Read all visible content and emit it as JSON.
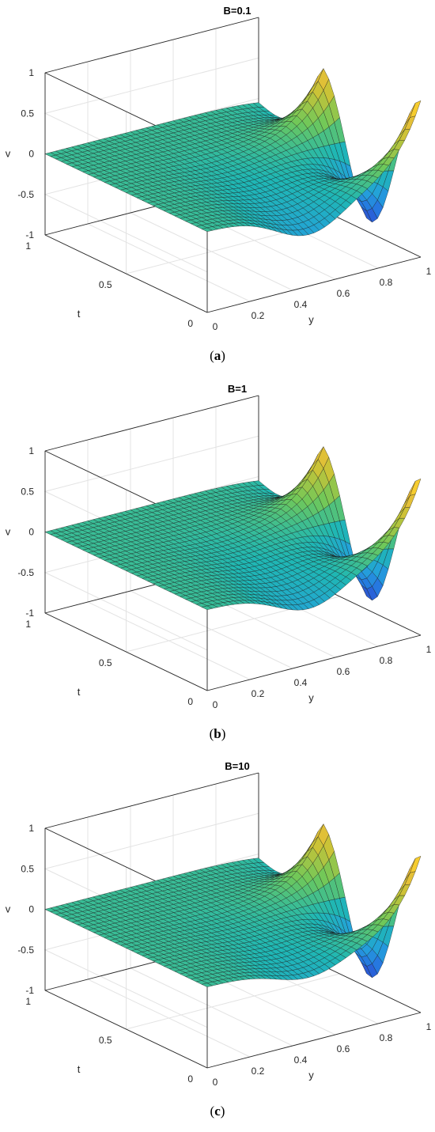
{
  "chart_data": [
    {
      "type": "surface",
      "title": "B=0.1",
      "caption": "a",
      "xlabel": "y",
      "ylabel": "t",
      "zlabel": "v",
      "xlim": [
        0,
        1
      ],
      "ylim": [
        0,
        1
      ],
      "zlim": [
        -1,
        1
      ],
      "xticks": [
        "0",
        "0.2",
        "0.4",
        "0.6",
        "0.8",
        "1"
      ],
      "yticks": [
        "0",
        "0.5",
        "1"
      ],
      "zticks": [
        "-1",
        "-0.5",
        "0",
        "0.5",
        "1"
      ],
      "B": 0.1,
      "surface_peaks": {
        "y1_t0": 0.93,
        "y1_t_mid": -0.9,
        "center_ridge_t0": -0.52
      },
      "grid": true,
      "colormap": [
        "#3d26a8",
        "#2a8ae8",
        "#1fb7b4",
        "#84c85a",
        "#f3c63b",
        "#f9fb14"
      ]
    },
    {
      "type": "surface",
      "title": "B=1",
      "caption": "b",
      "xlabel": "y",
      "ylabel": "t",
      "zlabel": "v",
      "xlim": [
        0,
        1
      ],
      "ylim": [
        0,
        1
      ],
      "zlim": [
        -1,
        1
      ],
      "xticks": [
        "0",
        "0.2",
        "0.4",
        "0.6",
        "0.8",
        "1"
      ],
      "yticks": [
        "0",
        "0.5",
        "1"
      ],
      "zticks": [
        "-1",
        "-0.5",
        "0",
        "0.5",
        "1"
      ],
      "B": 1,
      "surface_peaks": {
        "y1_t0": 0.93,
        "y1_t_mid": -0.9,
        "center_ridge_t0": -0.45
      },
      "grid": true,
      "colormap": [
        "#3d26a8",
        "#2a8ae8",
        "#1fb7b4",
        "#84c85a",
        "#f3c63b",
        "#f9fb14"
      ]
    },
    {
      "type": "surface",
      "title": "B=10",
      "caption": "c",
      "xlabel": "y",
      "ylabel": "t",
      "zlabel": "v",
      "xlim": [
        0,
        1
      ],
      "ylim": [
        0,
        1
      ],
      "zlim": [
        -1,
        1
      ],
      "xticks": [
        "0",
        "0.2",
        "0.4",
        "0.6",
        "0.8",
        "1"
      ],
      "yticks": [
        "0",
        "0.5",
        "1"
      ],
      "zticks": [
        "-1",
        "-0.5",
        "0",
        "0.5",
        "1"
      ],
      "B": 10,
      "surface_peaks": {
        "y1_t0": 0.93,
        "y1_t_mid": -0.9,
        "center_ridge_t0": -0.3
      },
      "grid": true,
      "colormap": [
        "#3d26a8",
        "#2a8ae8",
        "#1fb7b4",
        "#84c85a",
        "#f3c63b",
        "#f9fb14"
      ]
    }
  ]
}
